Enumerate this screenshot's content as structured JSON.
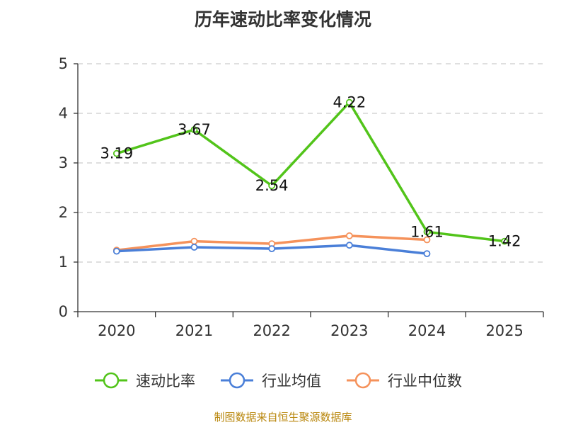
{
  "chart_data": {
    "type": "line",
    "title": "历年速动比率变化情况",
    "categories": [
      "2020",
      "2021",
      "2022",
      "2023",
      "2024",
      "2025"
    ],
    "y_ticks": [
      "0",
      "1",
      "2",
      "3",
      "4",
      "5"
    ],
    "ylim": [
      0,
      5
    ],
    "grid": true,
    "legend_position": "bottom",
    "series": [
      {
        "name": "速动比率",
        "color": "#52c41a",
        "values": [
          3.19,
          3.67,
          2.54,
          4.22,
          1.61,
          1.42
        ],
        "labels": [
          "3.19",
          "3.67",
          "2.54",
          "4.22",
          "1.61",
          "1.42"
        ]
      },
      {
        "name": "行业均值",
        "color": "#4a7fd8",
        "values": [
          1.22,
          1.3,
          1.27,
          1.34,
          1.17,
          null
        ]
      },
      {
        "name": "行业中位数",
        "color": "#f5925b",
        "values": [
          1.24,
          1.42,
          1.37,
          1.53,
          1.45,
          null
        ]
      }
    ]
  },
  "source_text": "制图数据来自恒生聚源数据库"
}
